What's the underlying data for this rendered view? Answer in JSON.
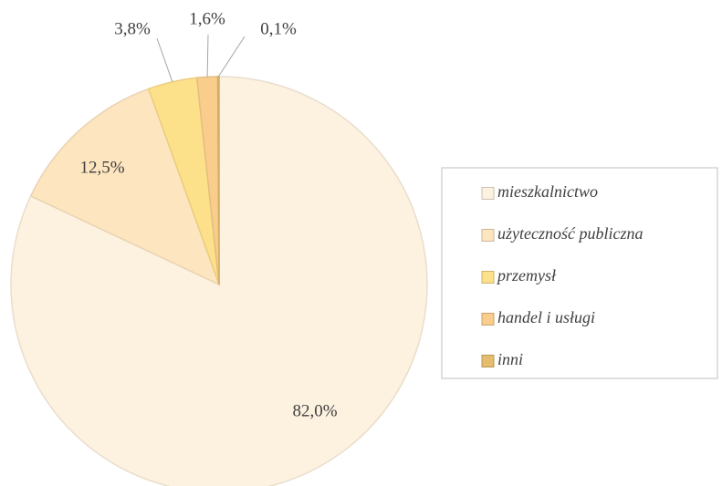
{
  "chart_data": {
    "type": "pie",
    "categories": [
      "mieszkalnictwo",
      "użyteczność publiczna",
      "przemysł",
      "handel i usługi",
      "inni"
    ],
    "values": [
      82.0,
      12.5,
      3.8,
      1.6,
      0.1
    ],
    "value_labels": [
      "82,0%",
      "12,5%",
      "3,8%",
      "1,6%",
      "0,1%"
    ],
    "colors": [
      "#fdf1df",
      "#fde5c0",
      "#fde08a",
      "#f9cd8c",
      "#e6bd6e"
    ],
    "legend": "right"
  }
}
